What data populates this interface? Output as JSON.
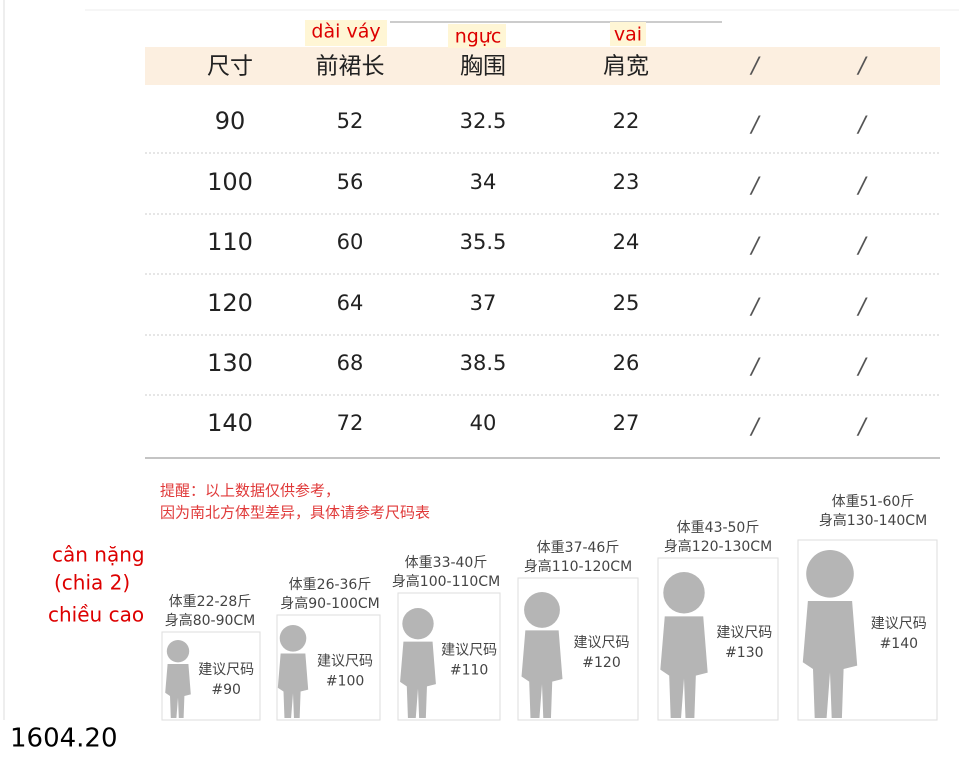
{
  "annotations": {
    "length": "dài váy",
    "chest": "ngực",
    "shoulder": "vai"
  },
  "table": {
    "header": [
      "尺寸",
      "前裙长",
      "胸围",
      "肩宽",
      "/",
      "/"
    ],
    "rows": [
      [
        "90",
        "52",
        "32.5",
        "22",
        "/",
        "/"
      ],
      [
        "100",
        "56",
        "34",
        "23",
        "/",
        "/"
      ],
      [
        "110",
        "60",
        "35.5",
        "24",
        "/",
        "/"
      ],
      [
        "120",
        "64",
        "37",
        "25",
        "/",
        "/"
      ],
      [
        "130",
        "68",
        "38.5",
        "26",
        "/",
        "/"
      ],
      [
        "140",
        "72",
        "40",
        "27",
        "/",
        "/"
      ]
    ]
  },
  "note": [
    "提醒：以上数据仅供参考，",
    "因为南北方体型差异，具体请参考尺码表"
  ],
  "side_labels": [
    "cân nặng",
    "(chia 2)",
    "chiều cao"
  ],
  "figures": [
    {
      "weight": "体重22-28斤",
      "height": "身高80-90CM",
      "label": "建议尺码",
      "size": "#90"
    },
    {
      "weight": "体重26-36斤",
      "height": "身高90-100CM",
      "label": "建议尺码",
      "size": "#100"
    },
    {
      "weight": "体重33-40斤",
      "height": "身高100-110CM",
      "label": "建议尺码",
      "size": "#110"
    },
    {
      "weight": "体重37-46斤",
      "height": "身高110-120CM",
      "label": "建议尺码",
      "size": "#120"
    },
    {
      "weight": "体重43-50斤",
      "height": "身高120-130CM",
      "label": "建议尺码",
      "size": "#130"
    },
    {
      "weight": "体重51-60斤",
      "height": "身高130-140CM",
      "label": "建议尺码",
      "size": "#140"
    }
  ],
  "footer": "1604.20"
}
